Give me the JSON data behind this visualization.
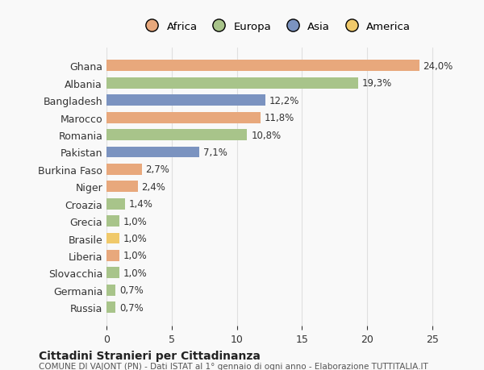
{
  "categories": [
    "Ghana",
    "Albania",
    "Bangladesh",
    "Marocco",
    "Romania",
    "Pakistan",
    "Burkina Faso",
    "Niger",
    "Croazia",
    "Grecia",
    "Brasile",
    "Liberia",
    "Slovacchia",
    "Germania",
    "Russia"
  ],
  "values": [
    24.0,
    19.3,
    12.2,
    11.8,
    10.8,
    7.1,
    2.7,
    2.4,
    1.4,
    1.0,
    1.0,
    1.0,
    1.0,
    0.7,
    0.7
  ],
  "labels": [
    "24,0%",
    "19,3%",
    "12,2%",
    "11,8%",
    "10,8%",
    "7,1%",
    "2,7%",
    "2,4%",
    "1,4%",
    "1,0%",
    "1,0%",
    "1,0%",
    "1,0%",
    "0,7%",
    "0,7%"
  ],
  "continents": [
    "Africa",
    "Europa",
    "Asia",
    "Africa",
    "Europa",
    "Asia",
    "Africa",
    "Africa",
    "Europa",
    "Europa",
    "America",
    "Africa",
    "Europa",
    "Europa",
    "Europa"
  ],
  "colors": {
    "Africa": "#E8A87C",
    "Europa": "#A8C48A",
    "Asia": "#7B93C0",
    "America": "#F0C96A"
  },
  "legend_order": [
    "Africa",
    "Europa",
    "Asia",
    "America"
  ],
  "legend_colors": [
    "#E8A87C",
    "#A8C48A",
    "#7B93C0",
    "#F0C96A"
  ],
  "title": "Cittadini Stranieri per Cittadinanza",
  "subtitle": "COMUNE DI VAJONT (PN) - Dati ISTAT al 1° gennaio di ogni anno - Elaborazione TUTTITALIA.IT",
  "xlim": [
    0,
    26
  ],
  "xticks": [
    0,
    5,
    10,
    15,
    20,
    25
  ],
  "background_color": "#f9f9f9",
  "grid_color": "#e0e0e0"
}
